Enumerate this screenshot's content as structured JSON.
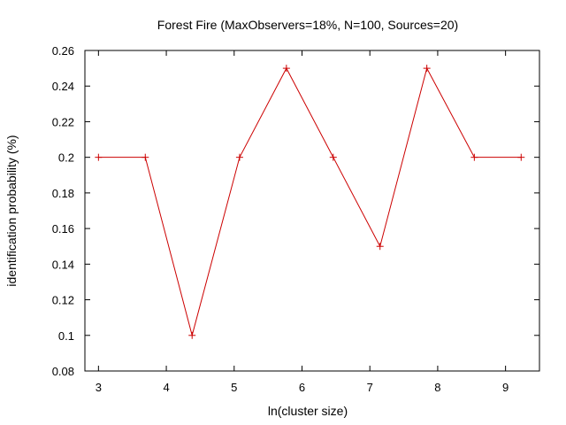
{
  "chart_data": {
    "type": "line",
    "title": "Forest Fire (MaxObservers=18%, N=100, Sources=20)",
    "xlabel": "ln(cluster size)",
    "ylabel": "identification probability (%)",
    "xlim": [
      2.8,
      9.5
    ],
    "ylim": [
      0.08,
      0.26
    ],
    "xticks": [
      3,
      4,
      5,
      6,
      7,
      8,
      9
    ],
    "yticks": [
      0.08,
      0.1,
      0.12,
      0.14,
      0.16,
      0.18,
      0.2,
      0.22,
      0.24,
      0.26
    ],
    "xtick_labels": [
      "3",
      "4",
      "5",
      "6",
      "7",
      "8",
      "9"
    ],
    "ytick_labels": [
      "0.08",
      "0.1",
      "0.12",
      "0.14",
      "0.16",
      "0.18",
      "0.2",
      "0.22",
      "0.24",
      "0.26"
    ],
    "grid": false,
    "legend": "none",
    "series": [
      {
        "color": "#cc0000",
        "marker": "plus",
        "x": [
          3.0,
          3.69,
          4.38,
          5.08,
          5.77,
          6.46,
          7.15,
          7.84,
          8.54,
          9.23
        ],
        "y": [
          0.2,
          0.2,
          0.1,
          0.2,
          0.25,
          0.2,
          0.15,
          0.25,
          0.2,
          0.2
        ]
      }
    ]
  }
}
